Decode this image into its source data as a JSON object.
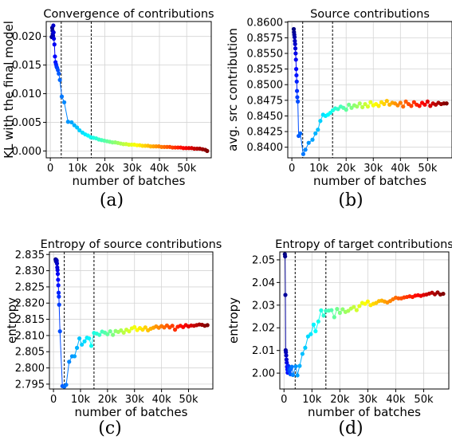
{
  "chart_data": [
    {
      "type": "scatter",
      "panel_label": "(a)",
      "title": "Convergence of contributions",
      "xlabel": "number of batches",
      "ylabel": "KL with the final model",
      "xlim": [
        -1500,
        59000
      ],
      "ylim": [
        -0.0012,
        0.0226
      ],
      "xticks": [
        0,
        10000,
        20000,
        30000,
        40000,
        50000
      ],
      "xtick_labels": [
        "0",
        "10k",
        "20k",
        "30k",
        "40k",
        "50k"
      ],
      "yticks": [
        0.0,
        0.005,
        0.01,
        0.015,
        0.02
      ],
      "ytick_labels": [
        "0.000",
        "0.005",
        "0.010",
        "0.015",
        "0.020"
      ],
      "vlines": [
        4000,
        15000
      ],
      "grid": true,
      "points": [
        [
          500,
          0.0199
        ],
        [
          700,
          0.0215
        ],
        [
          800,
          0.021
        ],
        [
          900,
          0.0204
        ],
        [
          1000,
          0.0201
        ],
        [
          1100,
          0.0219
        ],
        [
          1200,
          0.0207
        ],
        [
          1300,
          0.0196
        ],
        [
          1500,
          0.0186
        ],
        [
          1700,
          0.0165
        ],
        [
          1900,
          0.0155
        ],
        [
          2100,
          0.0151
        ],
        [
          2300,
          0.0147
        ],
        [
          2500,
          0.0145
        ],
        [
          2800,
          0.0141
        ],
        [
          3100,
          0.0135
        ],
        [
          3500,
          0.0124
        ],
        [
          4200,
          0.0095
        ],
        [
          5100,
          0.0085
        ],
        [
          6500,
          0.0051
        ],
        [
          7800,
          0.005
        ],
        [
          8800,
          0.0045
        ],
        [
          9800,
          0.0041
        ],
        [
          10700,
          0.0036
        ],
        [
          11800,
          0.0032
        ],
        [
          12800,
          0.0029
        ],
        [
          13800,
          0.0027
        ],
        [
          14800,
          0.0024
        ],
        [
          15800,
          0.0023
        ],
        [
          16800,
          0.0022
        ],
        [
          17800,
          0.002
        ],
        [
          18800,
          0.0019
        ],
        [
          19800,
          0.0018
        ],
        [
          20800,
          0.0017
        ],
        [
          21800,
          0.0016
        ],
        [
          22800,
          0.0015
        ],
        [
          23800,
          0.0015
        ],
        [
          24800,
          0.0014
        ],
        [
          25800,
          0.0013
        ],
        [
          26800,
          0.0012
        ],
        [
          27800,
          0.0012
        ],
        [
          28800,
          0.0011
        ],
        [
          29800,
          0.0011
        ],
        [
          30800,
          0.0011
        ],
        [
          31800,
          0.001
        ],
        [
          32800,
          0.001
        ],
        [
          33800,
          0.0009
        ],
        [
          34800,
          0.0009
        ],
        [
          35800,
          0.0009
        ],
        [
          36800,
          0.0008
        ],
        [
          37800,
          0.0008
        ],
        [
          38800,
          0.0008
        ],
        [
          39800,
          0.0008
        ],
        [
          40800,
          0.0007
        ],
        [
          41800,
          0.0007
        ],
        [
          42800,
          0.0007
        ],
        [
          43800,
          0.0007
        ],
        [
          44800,
          0.0006
        ],
        [
          45800,
          0.0006
        ],
        [
          46800,
          0.0006
        ],
        [
          47800,
          0.0006
        ],
        [
          48800,
          0.0005
        ],
        [
          49800,
          0.0005
        ],
        [
          50800,
          0.0005
        ],
        [
          51800,
          0.0005
        ],
        [
          52800,
          0.0004
        ],
        [
          53800,
          0.0004
        ],
        [
          54800,
          0.0004
        ],
        [
          55800,
          0.0003
        ],
        [
          56800,
          0.0002
        ],
        [
          57500,
          0.0
        ]
      ]
    },
    {
      "type": "scatter",
      "panel_label": "(b)",
      "title": "Source contributions",
      "xlabel": "number of batches",
      "ylabel": "avg. src contribution",
      "xlim": [
        -1500,
        59000
      ],
      "ylim": [
        0.8383,
        0.8601
      ],
      "xticks": [
        0,
        10000,
        20000,
        30000,
        40000,
        50000
      ],
      "xtick_labels": [
        "0",
        "10k",
        "20k",
        "30k",
        "40k",
        "50k"
      ],
      "yticks": [
        0.84,
        0.8425,
        0.845,
        0.8475,
        0.85,
        0.8525,
        0.855,
        0.8575,
        0.86
      ],
      "ytick_labels": [
        "0.8400",
        "0.8425",
        "0.8450",
        "0.8475",
        "0.8500",
        "0.8525",
        "0.8550",
        "0.8575",
        "0.8600"
      ],
      "vlines": [
        4000,
        15000
      ],
      "grid": true,
      "points": [
        [
          700,
          0.8589
        ],
        [
          800,
          0.8584
        ],
        [
          900,
          0.858
        ],
        [
          1000,
          0.8576
        ],
        [
          1100,
          0.857
        ],
        [
          1200,
          0.8565
        ],
        [
          1300,
          0.8558
        ],
        [
          1400,
          0.855
        ],
        [
          1500,
          0.854
        ],
        [
          1600,
          0.8525
        ],
        [
          1700,
          0.8515
        ],
        [
          1800,
          0.8505
        ],
        [
          1900,
          0.849
        ],
        [
          2000,
          0.848
        ],
        [
          2200,
          0.8473
        ],
        [
          2500,
          0.8418
        ],
        [
          3100,
          0.8422
        ],
        [
          4200,
          0.8389
        ],
        [
          5000,
          0.8396
        ],
        [
          6200,
          0.8407
        ],
        [
          7600,
          0.8412
        ],
        [
          8700,
          0.8422
        ],
        [
          9600,
          0.8428
        ],
        [
          10500,
          0.8442
        ],
        [
          11500,
          0.8452
        ],
        [
          12400,
          0.845
        ],
        [
          13300,
          0.8452
        ],
        [
          14200,
          0.8455
        ],
        [
          15100,
          0.8459
        ],
        [
          16000,
          0.8462
        ],
        [
          17000,
          0.8461
        ],
        [
          18000,
          0.8465
        ],
        [
          19000,
          0.8463
        ],
        [
          20000,
          0.846
        ],
        [
          21000,
          0.8468
        ],
        [
          22000,
          0.8463
        ],
        [
          23000,
          0.8467
        ],
        [
          24000,
          0.8465
        ],
        [
          25000,
          0.847
        ],
        [
          26000,
          0.8464
        ],
        [
          27000,
          0.8469
        ],
        [
          28000,
          0.8465
        ],
        [
          29000,
          0.8472
        ],
        [
          30000,
          0.8467
        ],
        [
          31000,
          0.8469
        ],
        [
          32000,
          0.8466
        ],
        [
          33000,
          0.8472
        ],
        [
          34000,
          0.8469
        ],
        [
          35000,
          0.8474
        ],
        [
          36000,
          0.8468
        ],
        [
          37000,
          0.8471
        ],
        [
          38000,
          0.847
        ],
        [
          39000,
          0.8467
        ],
        [
          40000,
          0.8471
        ],
        [
          41000,
          0.8465
        ],
        [
          42000,
          0.8473
        ],
        [
          43000,
          0.8469
        ],
        [
          44000,
          0.8466
        ],
        [
          45000,
          0.8472
        ],
        [
          46000,
          0.8468
        ],
        [
          47000,
          0.8466
        ],
        [
          48000,
          0.8471
        ],
        [
          49000,
          0.8468
        ],
        [
          50000,
          0.8473
        ],
        [
          51000,
          0.8466
        ],
        [
          52000,
          0.847
        ],
        [
          53000,
          0.8468
        ],
        [
          54000,
          0.8471
        ],
        [
          55000,
          0.8469
        ],
        [
          56000,
          0.847
        ],
        [
          57000,
          0.847
        ]
      ]
    },
    {
      "type": "scatter",
      "panel_label": "(c)",
      "title": "Entropy of source contributions",
      "xlabel": "number of batches",
      "ylabel": "entropy",
      "xlim": [
        -1500,
        59000
      ],
      "ylim": [
        2.7935,
        2.8358
      ],
      "xticks": [
        0,
        10000,
        20000,
        30000,
        40000,
        50000
      ],
      "xtick_labels": [
        "0",
        "10k",
        "20k",
        "30k",
        "40k",
        "50k"
      ],
      "yticks": [
        2.795,
        2.8,
        2.805,
        2.81,
        2.815,
        2.82,
        2.825,
        2.83,
        2.835
      ],
      "ytick_labels": [
        "2.795",
        "2.800",
        "2.805",
        "2.810",
        "2.815",
        "2.820",
        "2.825",
        "2.830",
        "2.835"
      ],
      "vlines": [
        4000,
        15000
      ],
      "grid": true,
      "points": [
        [
          800,
          2.8335
        ],
        [
          900,
          2.8331
        ],
        [
          1000,
          2.8328
        ],
        [
          1100,
          2.8333
        ],
        [
          1200,
          2.833
        ],
        [
          1300,
          2.8322
        ],
        [
          1400,
          2.831
        ],
        [
          1500,
          2.8302
        ],
        [
          1600,
          2.829
        ],
        [
          1700,
          2.8272
        ],
        [
          1800,
          2.8255
        ],
        [
          1900,
          2.8232
        ],
        [
          2000,
          2.822
        ],
        [
          2100,
          2.8195
        ],
        [
          2400,
          2.8113
        ],
        [
          3300,
          2.7944
        ],
        [
          4000,
          2.7942
        ],
        [
          4700,
          2.7948
        ],
        [
          5800,
          2.8019
        ],
        [
          6900,
          2.8036
        ],
        [
          7800,
          2.8036
        ],
        [
          8700,
          2.8062
        ],
        [
          9600,
          2.8091
        ],
        [
          10500,
          2.8072
        ],
        [
          11500,
          2.8082
        ],
        [
          12400,
          2.8093
        ],
        [
          13200,
          2.8091
        ],
        [
          14000,
          2.8068
        ],
        [
          15000,
          2.8108
        ],
        [
          16000,
          2.8106
        ],
        [
          17000,
          2.8102
        ],
        [
          18000,
          2.8112
        ],
        [
          19000,
          2.8109
        ],
        [
          20000,
          2.8104
        ],
        [
          21000,
          2.8113
        ],
        [
          22000,
          2.8102
        ],
        [
          23000,
          2.8114
        ],
        [
          24000,
          2.8111
        ],
        [
          25000,
          2.8116
        ],
        [
          26000,
          2.8109
        ],
        [
          27000,
          2.8118
        ],
        [
          28000,
          2.8113
        ],
        [
          29000,
          2.8122
        ],
        [
          30000,
          2.8126
        ],
        [
          31000,
          2.8117
        ],
        [
          32000,
          2.8123
        ],
        [
          33000,
          2.8118
        ],
        [
          34000,
          2.8125
        ],
        [
          35000,
          2.8116
        ],
        [
          36000,
          2.8121
        ],
        [
          37000,
          2.8124
        ],
        [
          38000,
          2.8128
        ],
        [
          39000,
          2.8124
        ],
        [
          40000,
          2.8129
        ],
        [
          41000,
          2.8125
        ],
        [
          42000,
          2.8131
        ],
        [
          43000,
          2.8125
        ],
        [
          44000,
          2.813
        ],
        [
          45000,
          2.8118
        ],
        [
          46000,
          2.8127
        ],
        [
          47000,
          2.813
        ],
        [
          48000,
          2.8126
        ],
        [
          49000,
          2.8132
        ],
        [
          50000,
          2.8128
        ],
        [
          51000,
          2.8131
        ],
        [
          52000,
          2.813
        ],
        [
          53000,
          2.8132
        ],
        [
          54000,
          2.8134
        ],
        [
          55000,
          2.8133
        ],
        [
          56000,
          2.813
        ],
        [
          57000,
          2.8132
        ]
      ]
    },
    {
      "type": "scatter",
      "panel_label": "(d)",
      "title": "Entropy of target contributions",
      "xlabel": "number of batches",
      "ylabel": "entropy",
      "xlim": [
        -1500,
        59000
      ],
      "ylim": [
        1.993,
        2.0535
      ],
      "xticks": [
        0,
        10000,
        20000,
        30000,
        40000,
        50000
      ],
      "xtick_labels": [
        "0",
        "10k",
        "20k",
        "30k",
        "40k",
        "50k"
      ],
      "yticks": [
        2.0,
        2.01,
        2.02,
        2.03,
        2.04,
        2.05
      ],
      "ytick_labels": [
        "2.00",
        "2.01",
        "2.02",
        "2.03",
        "2.04",
        "2.05"
      ],
      "vlines": [
        4000,
        15000
      ],
      "grid": true,
      "points": [
        [
          300,
          2.0525
        ],
        [
          400,
          2.0515
        ],
        [
          500,
          2.0345
        ],
        [
          600,
          2.0101
        ],
        [
          700,
          2.0092
        ],
        [
          800,
          2.0078
        ],
        [
          900,
          2.006
        ],
        [
          1000,
          2.0046
        ],
        [
          1100,
          2.0028
        ],
        [
          1200,
          2.0016
        ],
        [
          1300,
          2.0002
        ],
        [
          1400,
          2.0012
        ],
        [
          1500,
          2.0032
        ],
        [
          1700,
          2.0022
        ],
        [
          1900,
          2.0008
        ],
        [
          2100,
          2.0015
        ],
        [
          2300,
          1.9995
        ],
        [
          2500,
          2.0019
        ],
        [
          2800,
          2.0028
        ],
        [
          3200,
          1.9992
        ],
        [
          4200,
          2.003
        ],
        [
          4800,
          1.999
        ],
        [
          5600,
          2.0032
        ],
        [
          6600,
          2.0085
        ],
        [
          7600,
          2.0112
        ],
        [
          8600,
          2.0162
        ],
        [
          9600,
          2.0172
        ],
        [
          10600,
          2.0214
        ],
        [
          11300,
          2.0185
        ],
        [
          12300,
          2.0228
        ],
        [
          13300,
          2.0277
        ],
        [
          14200,
          2.0254
        ],
        [
          15000,
          2.0275
        ],
        [
          16000,
          2.0276
        ],
        [
          17000,
          2.0278
        ],
        [
          18000,
          2.0247
        ],
        [
          19000,
          2.0283
        ],
        [
          20000,
          2.0266
        ],
        [
          21000,
          2.0282
        ],
        [
          22000,
          2.027
        ],
        [
          23000,
          2.0275
        ],
        [
          24000,
          2.0285
        ],
        [
          25000,
          2.0292
        ],
        [
          26000,
          2.0278
        ],
        [
          27000,
          2.0296
        ],
        [
          28000,
          2.031
        ],
        [
          29000,
          2.0306
        ],
        [
          30000,
          2.0316
        ],
        [
          31000,
          2.03
        ],
        [
          32000,
          2.0306
        ],
        [
          33000,
          2.031
        ],
        [
          34000,
          2.0318
        ],
        [
          35000,
          2.032
        ],
        [
          36000,
          2.0316
        ],
        [
          37000,
          2.0312
        ],
        [
          38000,
          2.0318
        ],
        [
          39000,
          2.0326
        ],
        [
          40000,
          2.0333
        ],
        [
          41000,
          2.033
        ],
        [
          42000,
          2.033
        ],
        [
          43000,
          2.0334
        ],
        [
          44000,
          2.0336
        ],
        [
          45000,
          2.0339
        ],
        [
          46000,
          2.0336
        ],
        [
          47000,
          2.0342
        ],
        [
          48000,
          2.0344
        ],
        [
          49000,
          2.0341
        ],
        [
          50000,
          2.0345
        ],
        [
          51000,
          2.0347
        ],
        [
          52000,
          2.0351
        ],
        [
          53000,
          2.0355
        ],
        [
          54000,
          2.0348
        ],
        [
          55000,
          2.0356
        ],
        [
          56000,
          2.0347
        ],
        [
          57000,
          2.035
        ]
      ]
    }
  ]
}
